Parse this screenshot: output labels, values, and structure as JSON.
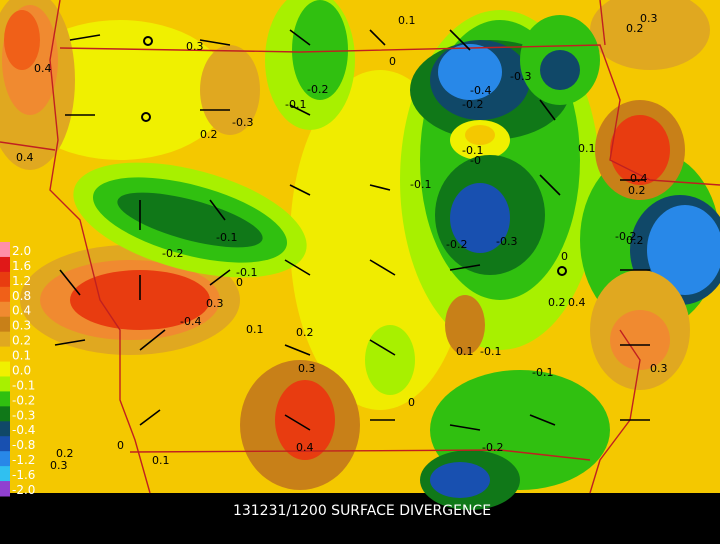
{
  "title": "131231/1200 SURFACE DIVERGENCE",
  "legend": [
    {
      "label": "2.0",
      "color": "#ff8fa8"
    },
    {
      "label": "1.6",
      "color": "#e01818"
    },
    {
      "label": "1.2",
      "color": "#e83c10"
    },
    {
      "label": "0.8",
      "color": "#f06018"
    },
    {
      "label": "0.4",
      "color": "#f08a30"
    },
    {
      "label": "0.3",
      "color": "#c88018"
    },
    {
      "label": "0.2",
      "color": "#e0a820"
    },
    {
      "label": "0.1",
      "color": "#f4c800"
    },
    {
      "label": "0.0",
      "color": "#f0f000"
    },
    {
      "label": "-0.1",
      "color": "#a8f000"
    },
    {
      "label": "-0.2",
      "color": "#30c010"
    },
    {
      "label": "-0.3",
      "color": "#107818"
    },
    {
      "label": "-0.4",
      "color": "#104868"
    },
    {
      "label": "-0.8",
      "color": "#1850b0"
    },
    {
      "label": "-1.2",
      "color": "#2888e8"
    },
    {
      "label": "-1.6",
      "color": "#30c0f0"
    },
    {
      "label": "-2.0",
      "color": "#9040d0"
    }
  ],
  "contour_labels": [
    "0.1",
    "0.3",
    "0.2",
    "0.3",
    "0.4",
    "0",
    "-0.2",
    "-0.4",
    "-0.3",
    "-0.1",
    "-0.2",
    "0.2",
    "-0.3",
    "0.4",
    "-0.1",
    "-0.1",
    "-0",
    "0.1",
    "0.4",
    "0.2",
    "-0.1",
    "-0.2",
    "-0.3",
    "-0.2",
    "0",
    "-0.2",
    "-0.1",
    "0",
    "0.3",
    "-0.4",
    "0.1",
    "0.2",
    "0.4",
    "0.1",
    "0.2",
    "0.3",
    "0.2",
    "-0.1",
    "-0.1",
    "0.3",
    "0",
    "0.3",
    "0.4",
    "0",
    "0.1",
    "-0.2",
    "0.2"
  ]
}
